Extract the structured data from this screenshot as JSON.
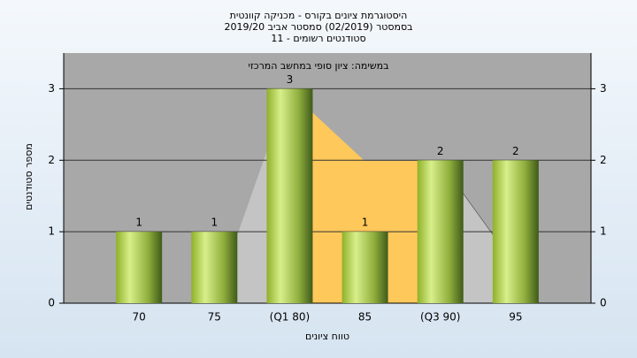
{
  "chart_data": {
    "type": "bar",
    "title": [
      "היסטוגרמת ציונים בקורס - מכניקה קוונטית",
      "בסמסטר  (02/2019)  סמסטר אביב 2019/20",
      "סטודנטים רשומים - 11"
    ],
    "annotation": "במשימה: ציון סופי במחשב המרכזי",
    "y_label": "מספר סטודנטים",
    "x_label": "טווח ציונים",
    "categories": [
      "70",
      "75",
      "(Q1 80)",
      "85",
      "(Q3 90)",
      "95"
    ],
    "values": [
      1,
      1,
      3,
      1,
      2,
      2
    ],
    "ylim": [
      0,
      3.5
    ],
    "yticks": [
      0,
      1,
      2,
      3
    ],
    "grid": true
  }
}
